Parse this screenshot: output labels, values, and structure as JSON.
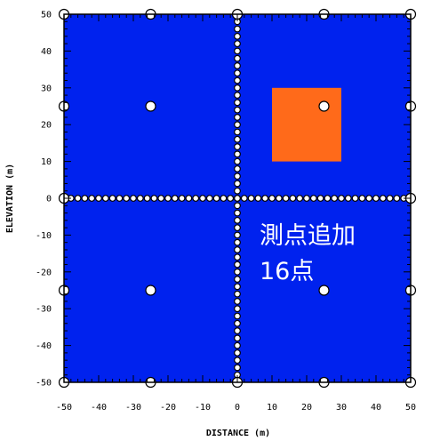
{
  "chart_data": {
    "type": "scatter",
    "xlabel": "DISTANCE (m)",
    "ylabel": "ELEVATION (m)",
    "xlim": [
      -50,
      50
    ],
    "ylim": [
      -50,
      50
    ],
    "xticks": [
      -50,
      -40,
      -30,
      -20,
      -10,
      0,
      10,
      20,
      30,
      40,
      50
    ],
    "yticks": [
      -50,
      -40,
      -30,
      -20,
      -10,
      0,
      10,
      20,
      30,
      40,
      50
    ],
    "background_color": "#0022ee",
    "anomaly": {
      "x_range": [
        10,
        30
      ],
      "y_range": [
        10,
        30
      ],
      "color": "#ff6a1a"
    },
    "measurement_points": {
      "sparse_x": [
        -50,
        -25,
        25,
        50
      ],
      "sparse_y": [
        -50,
        -25,
        25,
        50
      ],
      "axis_line_spacing": 2,
      "axis_line_range": [
        -50,
        50
      ]
    },
    "annotation": {
      "lines": [
        "測点追加",
        "16点"
      ]
    }
  }
}
